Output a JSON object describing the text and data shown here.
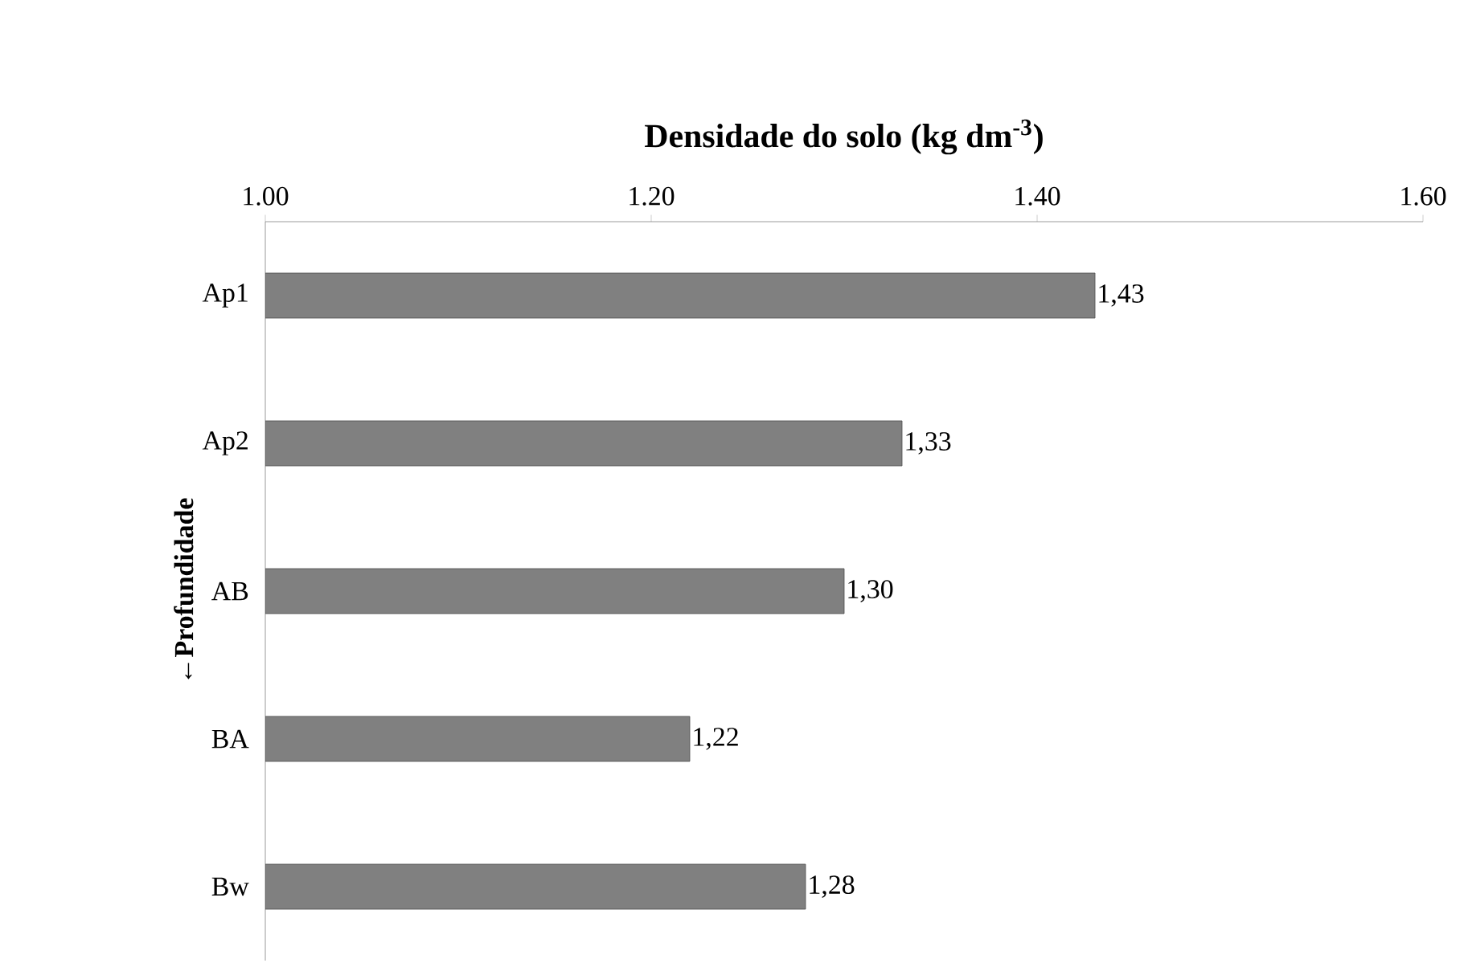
{
  "chart_data": {
    "type": "bar",
    "orientation": "horizontal",
    "title": "Densidade do solo (kg dm$^{-3}$)",
    "ylabel": "←Profundidade",
    "categories": [
      "Ap1",
      "Ap2",
      "AB",
      "BA",
      "Bw"
    ],
    "values": [
      1.43,
      1.33,
      1.3,
      1.22,
      1.28
    ],
    "value_labels": [
      "1,43",
      "1,33",
      "1,30",
      "1,22",
      "1,28"
    ],
    "color": "#808080",
    "xlim": [
      1.0,
      1.6
    ],
    "xticks": [
      {
        "value": 1.0,
        "label": "1.00"
      },
      {
        "value": 1.2,
        "label": "1.20"
      },
      {
        "value": 1.4,
        "label": "1.40"
      },
      {
        "value": 1.6,
        "label": "1.60"
      }
    ]
  }
}
